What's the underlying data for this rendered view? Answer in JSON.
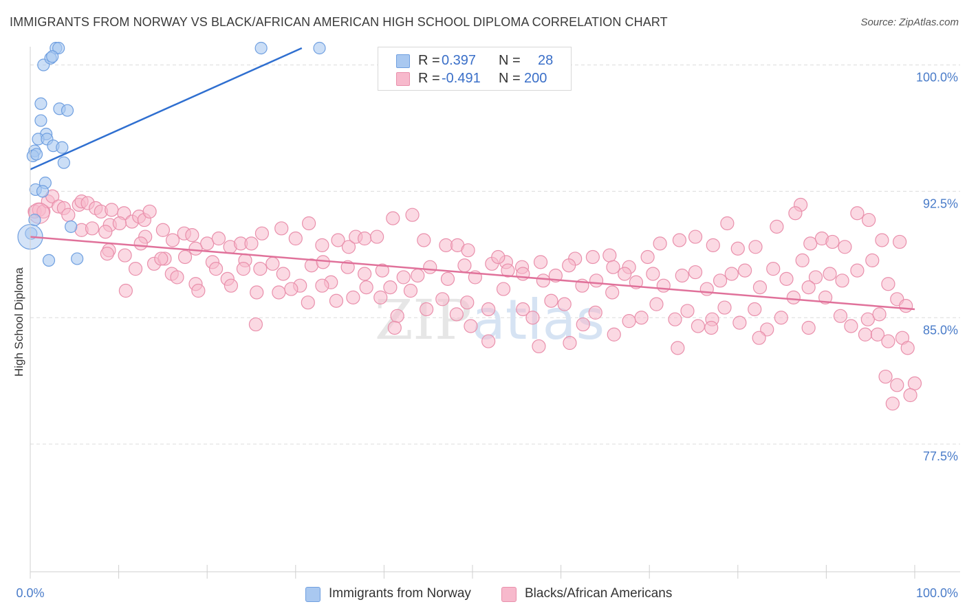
{
  "title": "IMMIGRANTS FROM NORWAY VS BLACK/AFRICAN AMERICAN HIGH SCHOOL DIPLOMA CORRELATION CHART",
  "source": "Source: ZipAtlas.com",
  "watermark": "ZIPatlas",
  "legend": {
    "rows": [
      {
        "r_label": "R =",
        "r_value": "0.397",
        "n_label": "N =",
        "n_value": "28",
        "color": "#a9c8f0",
        "border": "#6f9fe0"
      },
      {
        "r_label": "R =",
        "r_value": "-0.491",
        "n_label": "N =",
        "n_value": "200",
        "color": "#f7b9cc",
        "border": "#e98fab"
      }
    ]
  },
  "bottom_legend": [
    {
      "label": "Immigrants from Norway",
      "color": "#a9c8f0",
      "border": "#6f9fe0"
    },
    {
      "label": "Blacks/African Americans",
      "color": "#f7b9cc",
      "border": "#e98fab"
    }
  ],
  "chart_data": {
    "type": "scatter",
    "ylabel": "High School Diploma",
    "xlabel": "",
    "x_tick_labels": [
      "0.0%",
      "100.0%"
    ],
    "y_tick_labels": [
      "100.0%",
      "92.5%",
      "85.0%",
      "77.5%"
    ],
    "y_ticks": [
      100.0,
      92.5,
      85.0,
      77.5
    ],
    "xlim": [
      0,
      100
    ],
    "ylim": [
      70.0,
      101.0
    ],
    "grid": true,
    "series": [
      {
        "name": "Immigrants from Norway",
        "color": "#a9c8f0",
        "stroke": "#6f9fe0",
        "line_color": "#2f6fd0",
        "trend": {
          "x": [
            0.0,
            30.7
          ],
          "y": [
            93.8,
            101.0
          ]
        },
        "points": [
          [
            2.9,
            101.0
          ],
          [
            3.2,
            101.0
          ],
          [
            26.1,
            101.0
          ],
          [
            32.7,
            101.0
          ],
          [
            1.5,
            100.0
          ],
          [
            2.3,
            100.4
          ],
          [
            2.5,
            100.5
          ],
          [
            1.2,
            97.7
          ],
          [
            3.3,
            97.4
          ],
          [
            4.2,
            97.3
          ],
          [
            1.2,
            96.7
          ],
          [
            1.8,
            95.9
          ],
          [
            0.9,
            95.6
          ],
          [
            1.9,
            95.6
          ],
          [
            2.6,
            95.2
          ],
          [
            3.6,
            95.1
          ],
          [
            0.5,
            94.9
          ],
          [
            0.3,
            94.6
          ],
          [
            0.7,
            94.7
          ],
          [
            3.8,
            94.2
          ],
          [
            1.7,
            93.0
          ],
          [
            0.6,
            92.6
          ],
          [
            1.4,
            92.5
          ],
          [
            0.5,
            90.8
          ],
          [
            4.6,
            90.4
          ],
          [
            0.1,
            90.0
          ],
          [
            2.1,
            88.4
          ],
          [
            5.3,
            88.5
          ]
        ]
      },
      {
        "name": "Blacks/African Americans",
        "color": "#f7b9cc",
        "stroke": "#e98fab",
        "line_color": "#e0719a",
        "trend": {
          "x": [
            0.0,
            100.0
          ],
          "y": [
            89.8,
            85.5
          ]
        },
        "points": [
          [
            0.5,
            91.3
          ],
          [
            1.0,
            91.4
          ],
          [
            1.5,
            91.3
          ],
          [
            2.0,
            91.9
          ],
          [
            2.5,
            92.2
          ],
          [
            3.2,
            91.6
          ],
          [
            3.8,
            91.5
          ],
          [
            4.3,
            91.1
          ],
          [
            5.5,
            91.7
          ],
          [
            5.8,
            91.9
          ],
          [
            6.5,
            91.8
          ],
          [
            7.4,
            91.5
          ],
          [
            8.0,
            91.3
          ],
          [
            9.2,
            91.4
          ],
          [
            10.6,
            91.2
          ],
          [
            11.5,
            90.7
          ],
          [
            12.3,
            91.0
          ],
          [
            12.9,
            90.8
          ],
          [
            13.5,
            91.3
          ],
          [
            5.8,
            90.2
          ],
          [
            7.0,
            90.3
          ],
          [
            9.0,
            90.5
          ],
          [
            10.1,
            90.6
          ],
          [
            8.5,
            90.1
          ],
          [
            13.0,
            89.8
          ],
          [
            15.0,
            90.2
          ],
          [
            16.1,
            89.6
          ],
          [
            17.4,
            90.0
          ],
          [
            18.3,
            89.9
          ],
          [
            20.0,
            89.4
          ],
          [
            21.3,
            89.7
          ],
          [
            22.6,
            89.2
          ],
          [
            23.8,
            89.4
          ],
          [
            25.0,
            89.4
          ],
          [
            26.2,
            90.0
          ],
          [
            28.4,
            90.3
          ],
          [
            30.0,
            89.7
          ],
          [
            31.5,
            90.6
          ],
          [
            33.0,
            89.3
          ],
          [
            34.8,
            89.6
          ],
          [
            36.0,
            89.2
          ],
          [
            36.8,
            89.8
          ],
          [
            37.8,
            89.7
          ],
          [
            39.2,
            89.8
          ],
          [
            41.0,
            90.9
          ],
          [
            43.2,
            91.1
          ],
          [
            44.5,
            89.6
          ],
          [
            47.0,
            89.3
          ],
          [
            48.3,
            89.3
          ],
          [
            49.5,
            89.0
          ],
          [
            52.2,
            88.2
          ],
          [
            53.8,
            88.3
          ],
          [
            55.6,
            88.0
          ],
          [
            57.7,
            88.3
          ],
          [
            61.6,
            88.5
          ],
          [
            63.6,
            88.6
          ],
          [
            65.5,
            88.7
          ],
          [
            67.7,
            88.0
          ],
          [
            69.8,
            88.6
          ],
          [
            71.2,
            89.4
          ],
          [
            73.4,
            89.6
          ],
          [
            75.2,
            89.8
          ],
          [
            77.2,
            89.3
          ],
          [
            78.8,
            90.6
          ],
          [
            80.0,
            89.1
          ],
          [
            82.0,
            89.2
          ],
          [
            84.4,
            90.4
          ],
          [
            87.1,
            91.7
          ],
          [
            86.5,
            91.2
          ],
          [
            88.2,
            89.4
          ],
          [
            89.5,
            89.7
          ],
          [
            90.7,
            89.5
          ],
          [
            92.1,
            89.2
          ],
          [
            93.5,
            91.2
          ],
          [
            94.8,
            90.8
          ],
          [
            96.3,
            89.6
          ],
          [
            98.3,
            89.5
          ],
          [
            8.9,
            89.0
          ],
          [
            11.9,
            87.9
          ],
          [
            14.0,
            88.2
          ],
          [
            15.2,
            88.5
          ],
          [
            16.0,
            87.6
          ],
          [
            17.5,
            88.6
          ],
          [
            18.7,
            89.1
          ],
          [
            20.6,
            88.3
          ],
          [
            22.3,
            87.3
          ],
          [
            24.3,
            88.4
          ],
          [
            26.0,
            87.9
          ],
          [
            27.4,
            88.2
          ],
          [
            28.6,
            87.6
          ],
          [
            30.5,
            86.9
          ],
          [
            31.8,
            88.1
          ],
          [
            33.1,
            88.3
          ],
          [
            34.0,
            87.1
          ],
          [
            35.9,
            88.0
          ],
          [
            37.8,
            87.6
          ],
          [
            39.8,
            87.8
          ],
          [
            40.7,
            86.8
          ],
          [
            42.2,
            87.4
          ],
          [
            43.8,
            87.5
          ],
          [
            45.2,
            88.0
          ],
          [
            47.2,
            87.3
          ],
          [
            49.1,
            88.1
          ],
          [
            50.3,
            87.4
          ],
          [
            52.9,
            88.6
          ],
          [
            54.0,
            87.8
          ],
          [
            55.7,
            87.6
          ],
          [
            58.0,
            87.2
          ],
          [
            59.4,
            87.5
          ],
          [
            60.9,
            88.1
          ],
          [
            62.4,
            86.9
          ],
          [
            64.0,
            87.2
          ],
          [
            65.9,
            88.0
          ],
          [
            67.2,
            87.6
          ],
          [
            68.5,
            87.1
          ],
          [
            70.4,
            87.6
          ],
          [
            71.6,
            86.9
          ],
          [
            73.7,
            87.5
          ],
          [
            75.2,
            87.7
          ],
          [
            76.5,
            86.7
          ],
          [
            78.0,
            87.2
          ],
          [
            79.3,
            87.6
          ],
          [
            80.8,
            87.8
          ],
          [
            82.5,
            86.8
          ],
          [
            84.0,
            87.9
          ],
          [
            85.5,
            87.3
          ],
          [
            87.3,
            88.4
          ],
          [
            88.8,
            87.4
          ],
          [
            90.4,
            87.6
          ],
          [
            91.8,
            87.2
          ],
          [
            93.5,
            87.8
          ],
          [
            95.2,
            88.4
          ],
          [
            97.0,
            87.0
          ],
          [
            98.0,
            86.1
          ],
          [
            99.0,
            85.7
          ],
          [
            8.7,
            88.8
          ],
          [
            10.7,
            88.7
          ],
          [
            12.5,
            89.4
          ],
          [
            14.8,
            88.5
          ],
          [
            16.6,
            87.4
          ],
          [
            18.7,
            87.0
          ],
          [
            19.0,
            86.6
          ],
          [
            21.0,
            87.9
          ],
          [
            22.7,
            86.9
          ],
          [
            24.1,
            87.9
          ],
          [
            25.6,
            86.5
          ],
          [
            28.1,
            86.5
          ],
          [
            29.5,
            86.7
          ],
          [
            31.4,
            85.9
          ],
          [
            33.0,
            86.9
          ],
          [
            34.6,
            86.0
          ],
          [
            36.5,
            86.2
          ],
          [
            38.0,
            86.8
          ],
          [
            39.6,
            86.2
          ],
          [
            41.5,
            85.1
          ],
          [
            43.0,
            86.6
          ],
          [
            44.8,
            85.5
          ],
          [
            46.6,
            86.1
          ],
          [
            48.2,
            85.2
          ],
          [
            49.4,
            85.9
          ],
          [
            51.8,
            85.5
          ],
          [
            53.5,
            86.7
          ],
          [
            55.7,
            85.5
          ],
          [
            56.8,
            85.0
          ],
          [
            58.9,
            86.0
          ],
          [
            60.4,
            85.8
          ],
          [
            62.5,
            84.6
          ],
          [
            63.9,
            85.3
          ],
          [
            65.8,
            86.5
          ],
          [
            67.7,
            84.8
          ],
          [
            69.1,
            85.0
          ],
          [
            70.8,
            85.8
          ],
          [
            72.9,
            84.9
          ],
          [
            74.3,
            85.4
          ],
          [
            75.5,
            84.5
          ],
          [
            77.1,
            84.9
          ],
          [
            78.5,
            85.6
          ],
          [
            80.2,
            84.7
          ],
          [
            81.9,
            85.5
          ],
          [
            83.3,
            84.3
          ],
          [
            84.9,
            85.0
          ],
          [
            86.3,
            86.2
          ],
          [
            88.0,
            86.8
          ],
          [
            89.9,
            86.2
          ],
          [
            91.6,
            85.1
          ],
          [
            92.8,
            84.5
          ],
          [
            94.4,
            84.0
          ],
          [
            95.8,
            84.0
          ],
          [
            97.0,
            83.6
          ],
          [
            98.6,
            83.8
          ],
          [
            99.2,
            83.2
          ],
          [
            96.7,
            81.5
          ],
          [
            98.0,
            81.0
          ],
          [
            100.0,
            81.1
          ],
          [
            97.5,
            79.9
          ],
          [
            99.5,
            80.4
          ],
          [
            10.8,
            86.6
          ],
          [
            25.5,
            84.6
          ],
          [
            41.2,
            84.4
          ],
          [
            49.8,
            84.5
          ],
          [
            51.8,
            83.6
          ],
          [
            57.5,
            83.3
          ],
          [
            61.0,
            83.5
          ],
          [
            66.0,
            84.0
          ],
          [
            73.2,
            83.2
          ],
          [
            77.0,
            84.4
          ],
          [
            82.4,
            83.8
          ],
          [
            88.0,
            84.4
          ],
          [
            94.7,
            84.9
          ],
          [
            96.0,
            85.2
          ]
        ]
      }
    ]
  }
}
